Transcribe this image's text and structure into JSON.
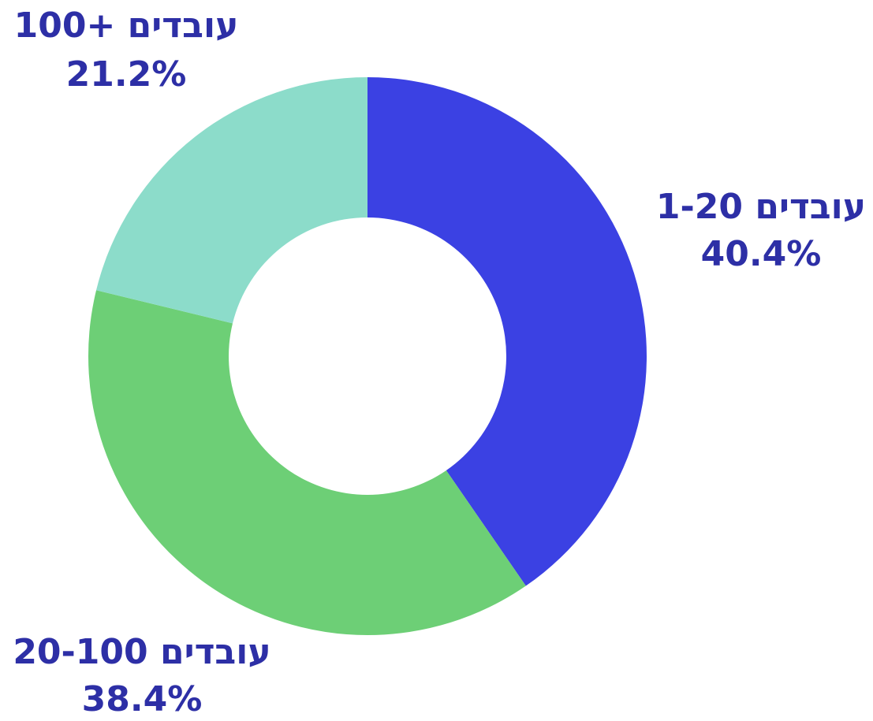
{
  "chart_data": {
    "type": "donut",
    "categories": [
      "עובדים 1-20",
      "עובדים 20-100",
      "עובדים +100"
    ],
    "values": [
      40.4,
      38.4,
      21.2
    ],
    "value_labels": [
      "40.4%",
      "38.4%",
      "21.2%"
    ],
    "colors": [
      "#3b41e3",
      "#6dcf76",
      "#8cdcca"
    ]
  }
}
